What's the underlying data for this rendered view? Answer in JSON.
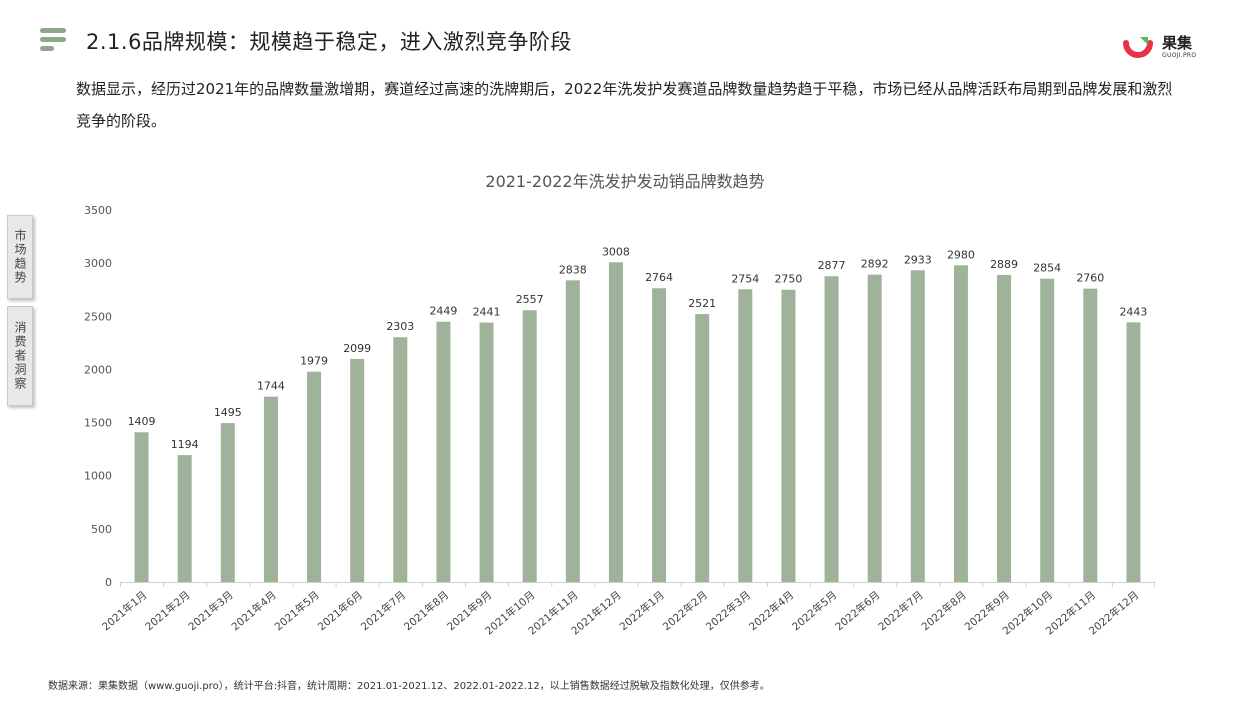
{
  "header": {
    "title": "2.1.6品牌规模：规模趋于稳定，进入激烈竞争阶段",
    "menu_icon": "menu-lines-icon"
  },
  "logo": {
    "name": "果集",
    "sub": "GUOJI.PRO",
    "colors": {
      "red": "#e8304a",
      "green": "#5cb85c"
    }
  },
  "description": "数据显示，经历过2021年的品牌数量激增期，赛道经过高速的洗牌期后，2022年洗发护发赛道品牌数量趋势趋于平稳，市场已经从品牌活跃布局期到品牌发展和激烈竞争的阶段。",
  "side_tabs": [
    "市场趋势",
    "消费者洞察"
  ],
  "footer": "数据来源：果集数据（www.guoji.pro），统计平台:抖音，统计周期：2021.01-2021.12、2022.01-2022.12，以上销售数据经过脱敏及指数化处理，仅供参考。",
  "chart_data": {
    "type": "bar",
    "title": "2021-2022年洗发护发动销品牌数趋势",
    "categories": [
      "2021年1月",
      "2021年2月",
      "2021年3月",
      "2021年4月",
      "2021年5月",
      "2021年6月",
      "2021年7月",
      "2021年8月",
      "2021年9月",
      "2021年10月",
      "2021年11月",
      "2021年12月",
      "2022年1月",
      "2022年2月",
      "2022年3月",
      "2022年4月",
      "2022年5月",
      "2022年6月",
      "2022年7月",
      "2022年8月",
      "2022年9月",
      "2022年10月",
      "2022年11月",
      "2022年12月"
    ],
    "values": [
      1409,
      1194,
      1495,
      1744,
      1979,
      2099,
      2303,
      2449,
      2441,
      2557,
      2838,
      3008,
      2764,
      2521,
      2754,
      2750,
      2877,
      2892,
      2933,
      2980,
      2889,
      2854,
      2760,
      2443
    ],
    "yticks": [
      0,
      500,
      1000,
      1500,
      2000,
      2500,
      3000,
      3500
    ],
    "ylim": [
      0,
      3500
    ],
    "bar_color": "#9fb39a",
    "grid": false,
    "legend": "none"
  }
}
